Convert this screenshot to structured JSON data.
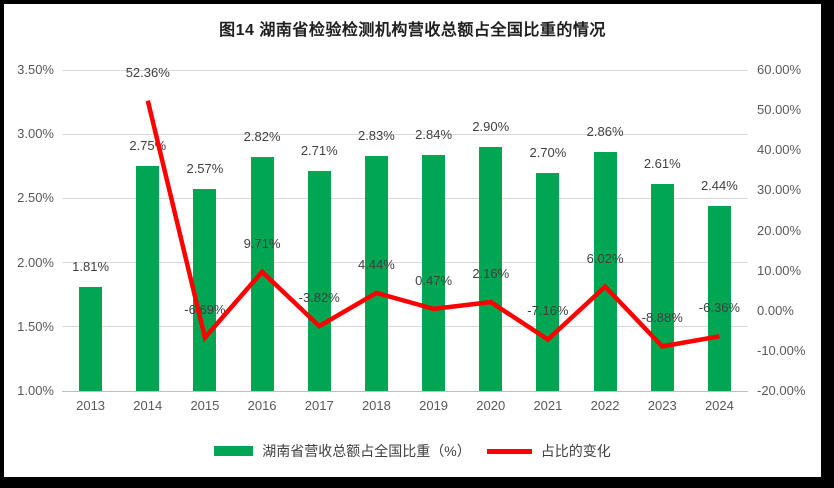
{
  "chart_data": {
    "type": "bar+line",
    "title": "图14 湖南省检验检测机构营收总额占全国比重的情况",
    "categories": [
      "2013",
      "2014",
      "2015",
      "2016",
      "2017",
      "2018",
      "2019",
      "2020",
      "2021",
      "2022",
      "2023",
      "2024"
    ],
    "series": [
      {
        "name": "湖南省营收总额占全国比重（%）",
        "type": "bar",
        "axis": "left",
        "color": "#00A651",
        "values": [
          1.81,
          2.75,
          2.57,
          2.82,
          2.71,
          2.83,
          2.84,
          2.9,
          2.7,
          2.86,
          2.61,
          2.44
        ],
        "labels": [
          "1.81%",
          "2.75%",
          "2.57%",
          "2.82%",
          "2.71%",
          "2.83%",
          "2.84%",
          "2.90%",
          "2.70%",
          "2.86%",
          "2.61%",
          "2.44%"
        ]
      },
      {
        "name": "占比的变化",
        "type": "line",
        "axis": "right",
        "color": "#FF0000",
        "values": [
          null,
          52.36,
          -6.69,
          9.71,
          -3.82,
          4.44,
          0.47,
          2.16,
          -7.16,
          6.02,
          -8.88,
          -6.36
        ],
        "labels": [
          null,
          "52.36%",
          "-6.69%",
          "9.71%",
          "-3.82%",
          "4.44%",
          "0.47%",
          "2.16%",
          "-7.16%",
          "6.02%",
          "-8.88%",
          "-6.36%"
        ]
      }
    ],
    "left_axis": {
      "min": 1.0,
      "max": 3.5,
      "step": 0.5,
      "tick_labels": [
        "3.50%",
        "3.00%",
        "2.50%",
        "2.00%",
        "1.50%",
        "1.00%"
      ]
    },
    "right_axis": {
      "min": -20,
      "max": 60,
      "step": 10,
      "tick_labels": [
        "60.00%",
        "50.00%",
        "40.00%",
        "30.00%",
        "20.00%",
        "10.00%",
        "0.00%",
        "-10.00%",
        "-20.00%"
      ]
    },
    "grid": true,
    "legend_position": "bottom"
  },
  "colors": {
    "bar_green": "#00A651",
    "line_red": "#FF0000",
    "gridline": "#D9D9D9",
    "axis_text": "#595959",
    "data_label": "#404040",
    "frame_border": "#000000",
    "background": "#FFFFFF"
  }
}
